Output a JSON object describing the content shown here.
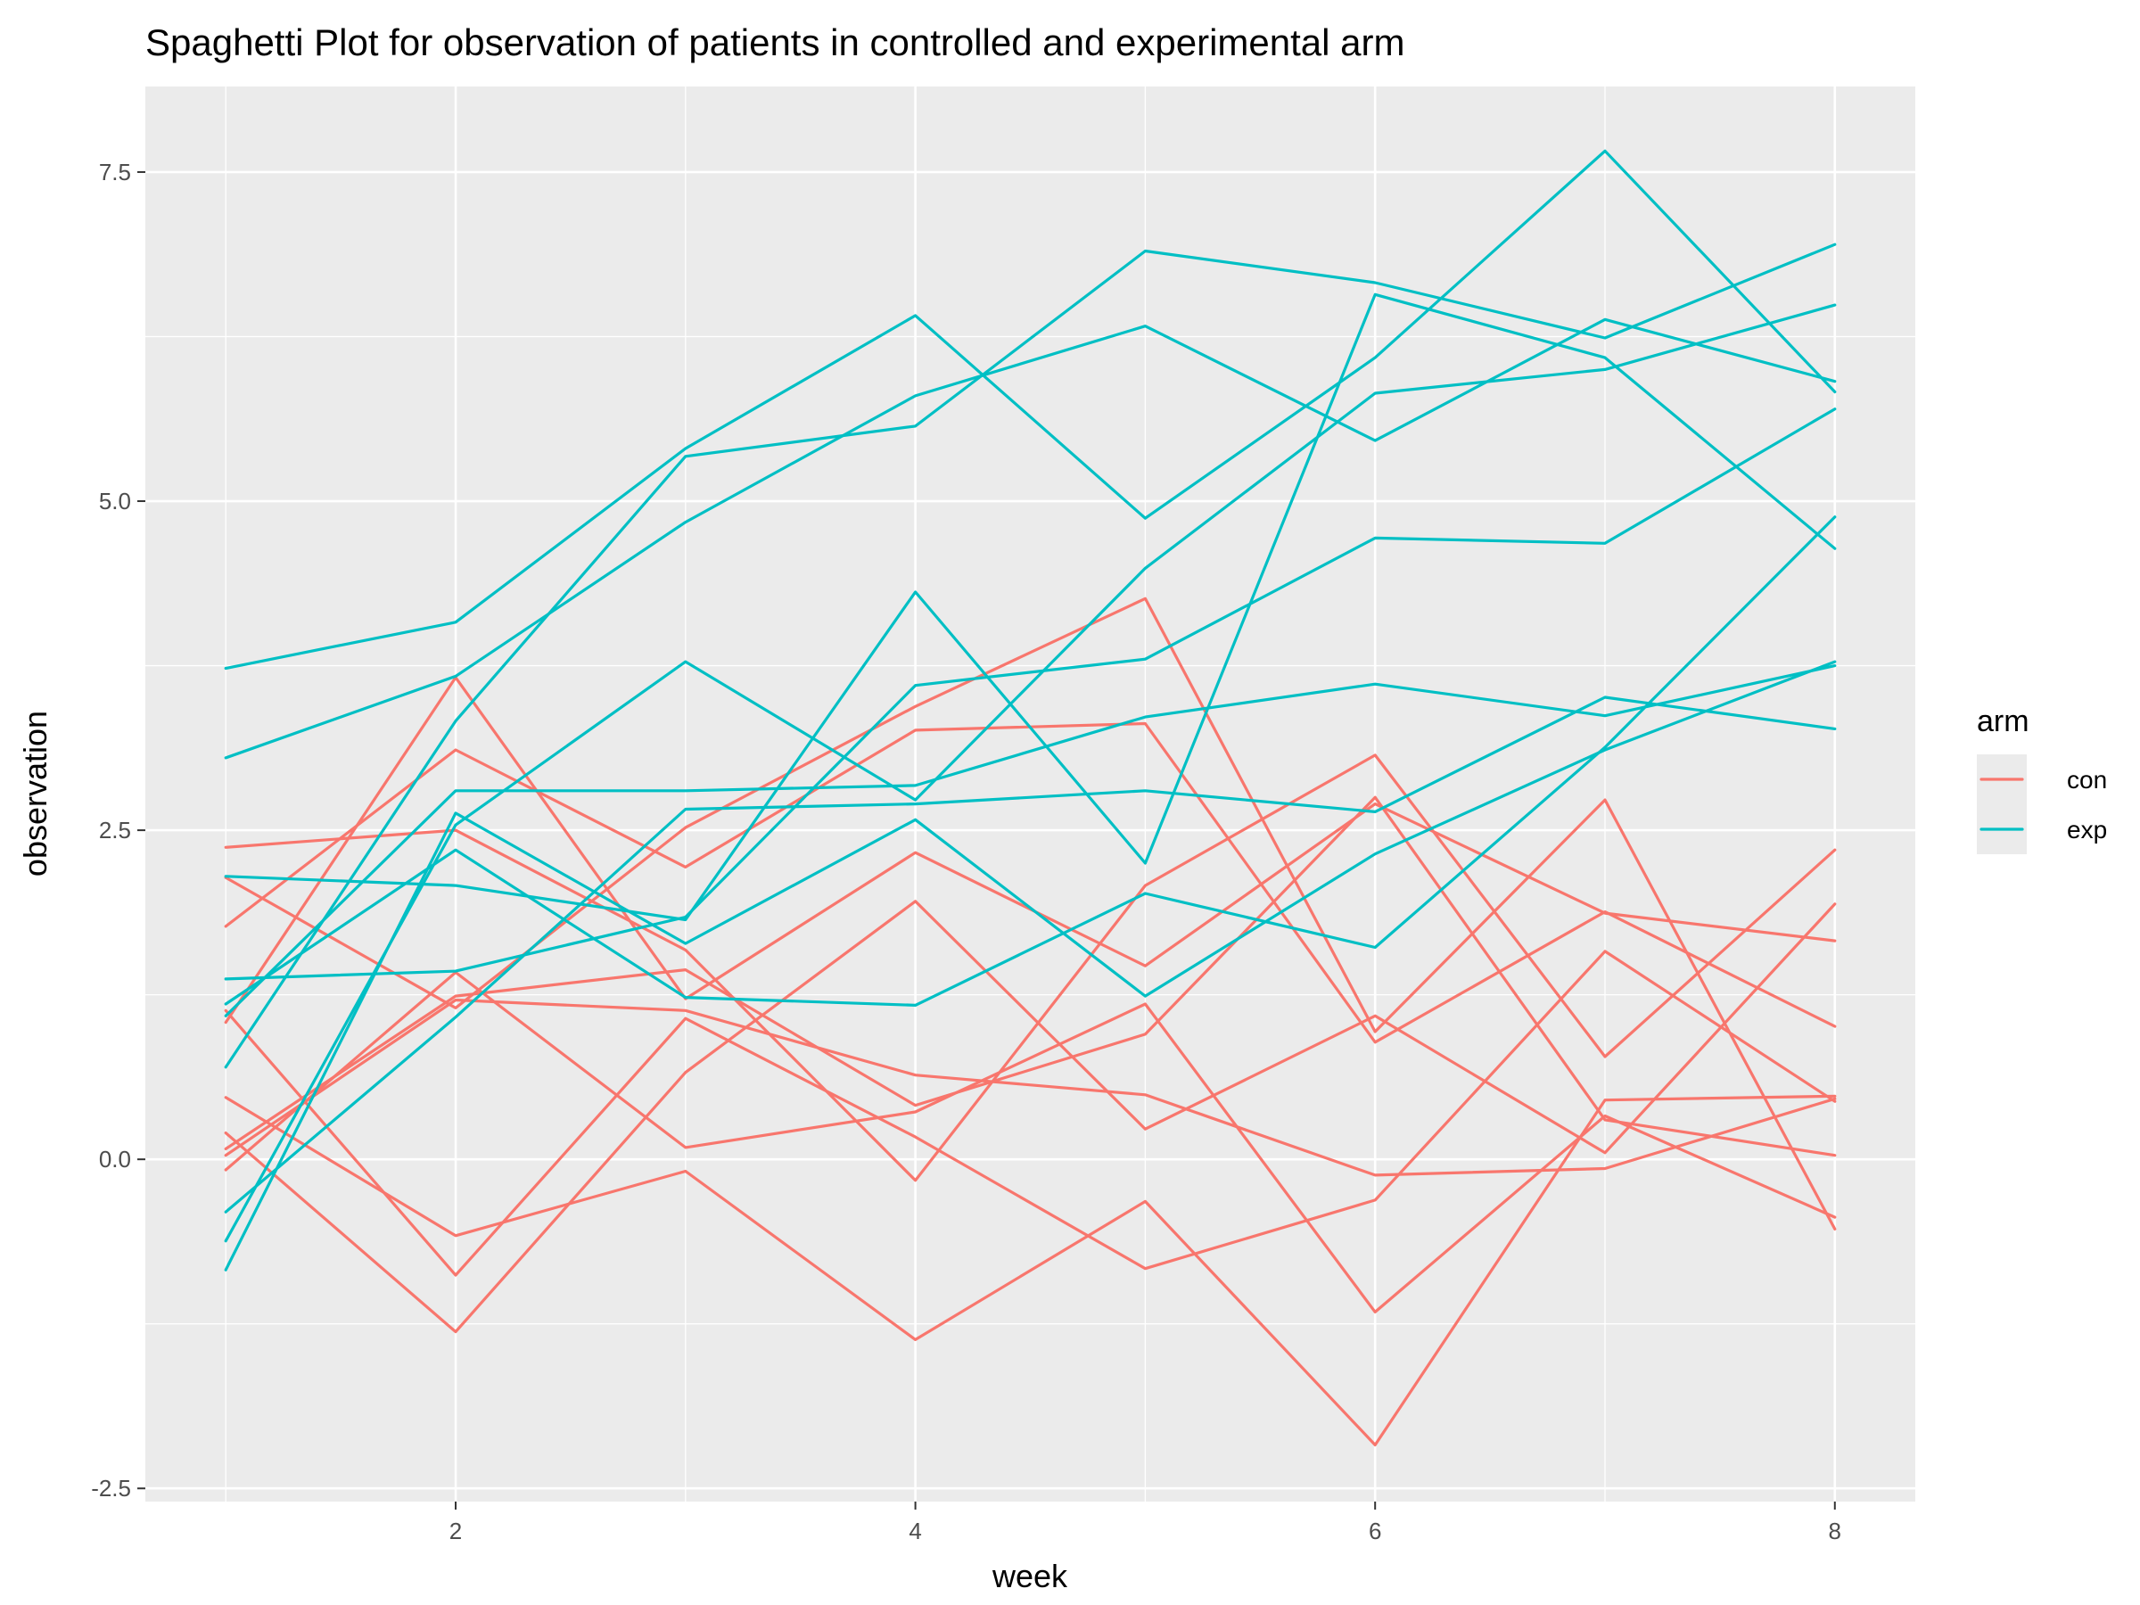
{
  "chart_data": {
    "type": "line",
    "title": "Spaghetti Plot for observation of patients in controlled and experimental arm",
    "xlabel": "week",
    "ylabel": "observation",
    "xlim": [
      0.65,
      8.35
    ],
    "ylim": [
      -2.6,
      8.15
    ],
    "x_ticks": [
      2,
      4,
      6,
      8
    ],
    "x_tick_labels": [
      "2",
      "4",
      "6",
      "8"
    ],
    "x_minor": [
      1,
      3,
      5,
      7
    ],
    "y_ticks": [
      -2.5,
      0,
      2.5,
      5,
      7.5
    ],
    "y_tick_labels": [
      "-2.5",
      "0.0",
      "2.5",
      "5.0",
      "7.5"
    ],
    "y_minor": [
      -1.25,
      1.25,
      3.75,
      6.25
    ],
    "grid": true,
    "legend": {
      "title": "arm",
      "placement": "right",
      "entries": [
        {
          "label": "con",
          "color": "#F8766D"
        },
        {
          "label": "exp",
          "color": "#00BFC4"
        }
      ]
    },
    "x": [
      1,
      2,
      3,
      4,
      5,
      6,
      7,
      8
    ],
    "series": [
      {
        "group": "con",
        "color": "#F8766D",
        "values": [
          0.2,
          -1.31,
          0.66,
          1.96,
          0.23,
          1.09,
          0.05,
          1.94
        ]
      },
      {
        "group": "con",
        "color": "#F8766D",
        "values": [
          1.13,
          -0.88,
          1.07,
          0.17,
          -0.83,
          -0.31,
          1.58,
          0.44
        ]
      },
      {
        "group": "con",
        "color": "#F8766D",
        "values": [
          1.77,
          3.11,
          2.22,
          3.26,
          3.31,
          0.89,
          1.88,
          1.01
        ]
      },
      {
        "group": "con",
        "color": "#F8766D",
        "values": [
          1.04,
          3.66,
          1.22,
          2.33,
          1.47,
          2.7,
          1.87,
          1.66
        ]
      },
      {
        "group": "con",
        "color": "#F8766D",
        "values": [
          0.47,
          -0.58,
          -0.09,
          -1.37,
          -0.32,
          -2.17,
          0.45,
          0.48
        ]
      },
      {
        "group": "con",
        "color": "#F8766D",
        "values": [
          2.37,
          2.5,
          1.59,
          -0.16,
          2.08,
          3.07,
          0.78,
          2.35
        ]
      },
      {
        "group": "con",
        "color": "#F8766D",
        "values": [
          0.03,
          1.21,
          1.13,
          0.64,
          0.49,
          -0.12,
          -0.07,
          0.46
        ]
      },
      {
        "group": "con",
        "color": "#F8766D",
        "values": [
          -0.08,
          1.42,
          0.09,
          0.36,
          1.18,
          -1.16,
          0.33,
          -0.44
        ]
      },
      {
        "group": "con",
        "color": "#F8766D",
        "values": [
          0.08,
          1.24,
          1.44,
          0.41,
          0.95,
          2.75,
          0.3,
          0.03
        ]
      },
      {
        "group": "con",
        "color": "#F8766D",
        "values": [
          2.14,
          1.15,
          2.52,
          3.44,
          4.26,
          0.97,
          2.73,
          -0.53
        ]
      },
      {
        "group": "exp",
        "color": "#00BFC4",
        "values": [
          3.05,
          3.67,
          4.84,
          5.8,
          6.33,
          5.46,
          6.38,
          5.91
        ]
      },
      {
        "group": "exp",
        "color": "#00BFC4",
        "values": [
          -0.84,
          2.63,
          1.64,
          2.58,
          1.24,
          2.32,
          3.11,
          3.78
        ]
      },
      {
        "group": "exp",
        "color": "#00BFC4",
        "values": [
          2.15,
          2.08,
          1.82,
          4.31,
          2.25,
          6.57,
          6.09,
          4.64
        ]
      },
      {
        "group": "exp",
        "color": "#00BFC4",
        "values": [
          -0.62,
          2.54,
          3.78,
          2.73,
          4.49,
          5.82,
          6.0,
          6.49
        ]
      },
      {
        "group": "exp",
        "color": "#00BFC4",
        "values": [
          0.7,
          3.33,
          5.34,
          5.57,
          6.9,
          6.66,
          6.24,
          6.95
        ]
      },
      {
        "group": "exp",
        "color": "#00BFC4",
        "values": [
          3.73,
          4.08,
          5.4,
          6.41,
          4.87,
          6.09,
          7.66,
          5.83
        ]
      },
      {
        "group": "exp",
        "color": "#00BFC4",
        "values": [
          1.18,
          2.35,
          1.23,
          1.17,
          2.02,
          1.61,
          3.13,
          4.88
        ]
      },
      {
        "group": "exp",
        "color": "#00BFC4",
        "values": [
          1.37,
          1.43,
          1.84,
          3.6,
          3.8,
          4.72,
          4.68,
          5.7
        ]
      },
      {
        "group": "exp",
        "color": "#00BFC4",
        "values": [
          -0.4,
          1.08,
          2.66,
          2.7,
          2.8,
          2.64,
          3.51,
          3.27
        ]
      },
      {
        "group": "exp",
        "color": "#00BFC4",
        "values": [
          1.09,
          2.8,
          2.8,
          2.84,
          3.36,
          3.61,
          3.37,
          3.75
        ]
      }
    ]
  }
}
